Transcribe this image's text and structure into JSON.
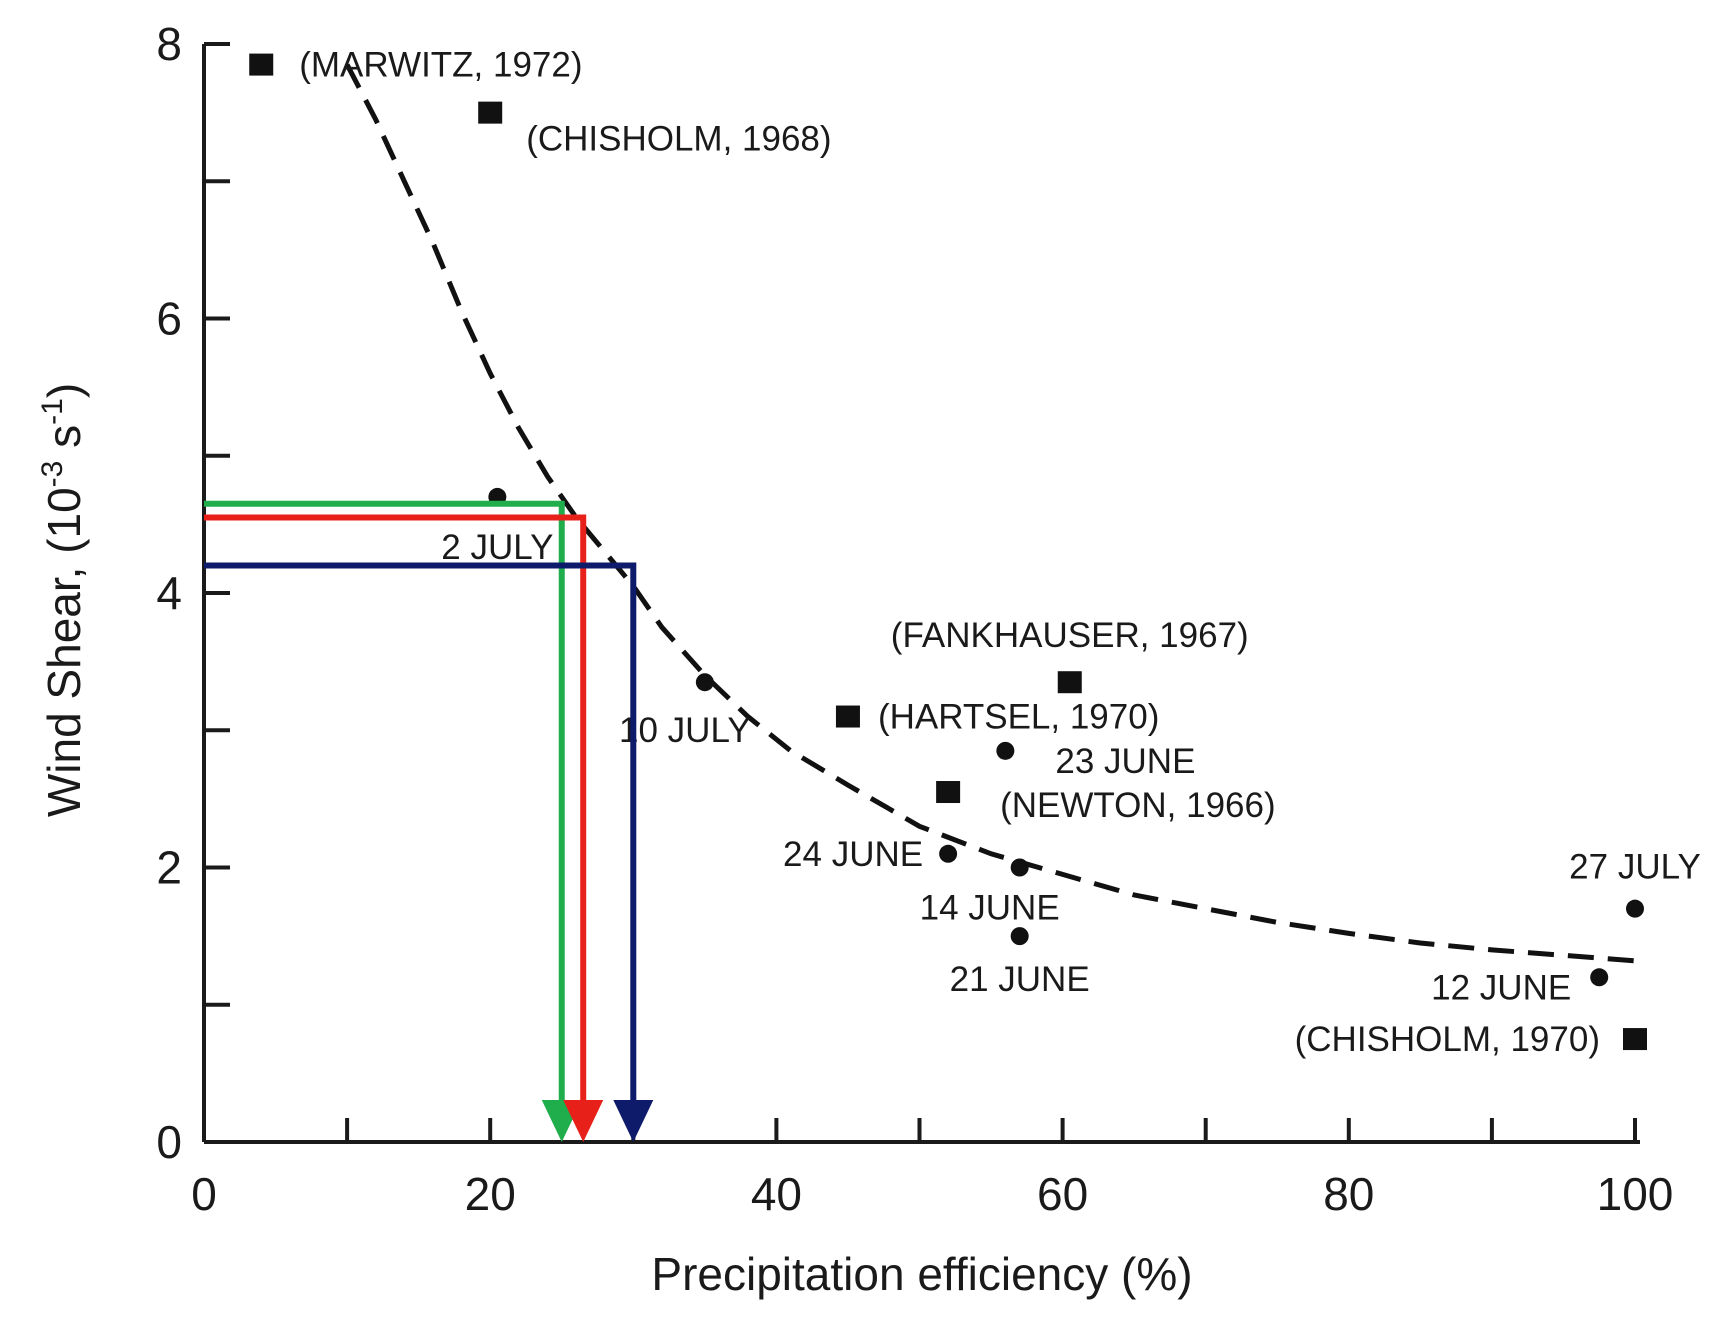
{
  "chart_data": {
    "type": "scatter",
    "title": "",
    "xlabel": "Precipitation efficiency (%)",
    "ylabel": "Wind Shear, (10",
    "ylabel_exp1": "-3",
    "ylabel_mid": " s",
    "ylabel_exp2": "-1",
    "ylabel_end": ")",
    "xlim": [
      0,
      100
    ],
    "ylim": [
      0,
      8
    ],
    "x_ticks": [
      0,
      10,
      20,
      30,
      40,
      50,
      60,
      70,
      80,
      90,
      100
    ],
    "x_tick_labels": [
      {
        "value": 0,
        "label": "0"
      },
      {
        "value": 20,
        "label": "20"
      },
      {
        "value": 40,
        "label": "40"
      },
      {
        "value": 60,
        "label": "60"
      },
      {
        "value": 80,
        "label": "80"
      },
      {
        "value": 100,
        "label": "100"
      }
    ],
    "y_ticks": [
      0,
      1,
      2,
      3,
      4,
      5,
      6,
      7,
      8
    ],
    "y_tick_labels": [
      {
        "value": 0,
        "label": "0"
      },
      {
        "value": 2,
        "label": "2"
      },
      {
        "value": 4,
        "label": "4"
      },
      {
        "value": 6,
        "label": "6"
      },
      {
        "value": 8,
        "label": "8"
      }
    ],
    "grid": false,
    "series": [
      {
        "marker": "square",
        "color": "#111111",
        "points": [
          {
            "x": 4,
            "y": 7.85,
            "label": "(MARWITZ, 1972)"
          },
          {
            "x": 20,
            "y": 7.5,
            "label": "(CHISHOLM, 1968)"
          },
          {
            "x": 60.5,
            "y": 3.35,
            "label": "(FANKHAUSER, 1967)"
          },
          {
            "x": 45,
            "y": 3.1,
            "label": "(HARTSEL, 1970)"
          },
          {
            "x": 52,
            "y": 2.55,
            "label": "(NEWTON, 1966)"
          },
          {
            "x": 100,
            "y": 0.75,
            "label": "(CHISHOLM, 1970)"
          }
        ]
      },
      {
        "marker": "circle",
        "color": "#111111",
        "points": [
          {
            "x": 20.5,
            "y": 4.7,
            "label": "2 JULY"
          },
          {
            "x": 35,
            "y": 3.35,
            "label": "10 JULY"
          },
          {
            "x": 56,
            "y": 2.85,
            "label": "23 JUNE"
          },
          {
            "x": 52,
            "y": 2.1,
            "label": "24 JUNE"
          },
          {
            "x": 57,
            "y": 2.0,
            "label": "14 JUNE"
          },
          {
            "x": 57,
            "y": 1.5,
            "label": "21 JUNE"
          },
          {
            "x": 100,
            "y": 1.7,
            "label": "27 JULY"
          },
          {
            "x": 97.5,
            "y": 1.2,
            "label": "12 JUNE"
          }
        ]
      }
    ],
    "fit_curve": {
      "style": "dashed",
      "color": "#111111",
      "x": [
        10,
        12,
        14,
        16,
        18,
        20,
        22,
        24,
        26,
        28,
        30,
        32,
        35,
        38,
        41,
        45,
        50,
        55,
        60,
        65,
        70,
        75,
        80,
        85,
        90,
        95,
        100
      ],
      "y": [
        7.85,
        7.45,
        7.0,
        6.55,
        6.05,
        5.6,
        5.2,
        4.85,
        4.55,
        4.3,
        4.05,
        3.75,
        3.4,
        3.1,
        2.85,
        2.6,
        2.3,
        2.1,
        1.95,
        1.8,
        1.7,
        1.6,
        1.52,
        1.45,
        1.4,
        1.36,
        1.32
      ]
    },
    "overlay_arrows": [
      {
        "color": "#1fae4b",
        "x_start": 0,
        "y": 4.65,
        "x": 25
      },
      {
        "color": "#e8201a",
        "x_start": 0,
        "y": 4.55,
        "x": 26.5
      },
      {
        "color": "#0d1b6a",
        "x_start": 0,
        "y": 4.2,
        "x": 30
      }
    ]
  }
}
